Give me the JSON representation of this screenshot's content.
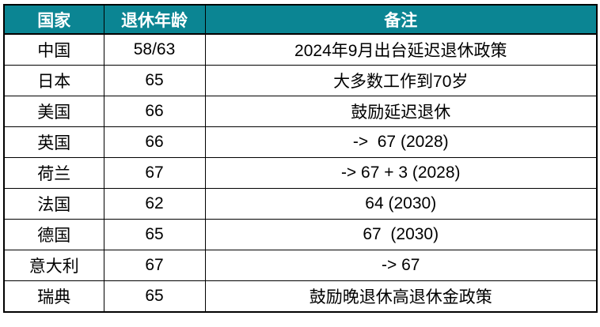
{
  "page": {
    "background": "#ffffff",
    "header_bg": "#0b8593",
    "header_text_color": "#ffffff",
    "body_text_color": "#000000",
    "border_color": "#000000"
  },
  "table": {
    "columns": [
      "国家",
      "退休年龄",
      "备注"
    ],
    "rows": [
      [
        "中国",
        "58/63",
        "2024年9月出台延迟退休政策"
      ],
      [
        "日本",
        "65",
        "大多数工作到70岁"
      ],
      [
        "美国",
        "66",
        "鼓励延迟退休"
      ],
      [
        "英国",
        "66",
        "->  67 (2028)"
      ],
      [
        "荷兰",
        "67",
        "-> 67 + 3 (2028)"
      ],
      [
        "法国",
        "62",
        "64 (2030)"
      ],
      [
        "德国",
        "65",
        "67  (2030)"
      ],
      [
        "意大利",
        "67",
        "-> 67"
      ],
      [
        "瑞典",
        "65",
        "鼓励晚退休高退休金政策"
      ]
    ]
  },
  "chart_data": {
    "type": "table",
    "title": "",
    "columns": [
      "国家",
      "退休年龄",
      "备注"
    ],
    "rows": [
      {
        "country": "中国",
        "retirement_age": "58/63",
        "note": "2024年9月出台延迟退休政策"
      },
      {
        "country": "日本",
        "retirement_age": "65",
        "note": "大多数工作到70岁"
      },
      {
        "country": "美国",
        "retirement_age": "66",
        "note": "鼓励延迟退休"
      },
      {
        "country": "英国",
        "retirement_age": "66",
        "note": "->  67 (2028)"
      },
      {
        "country": "荷兰",
        "retirement_age": "67",
        "note": "-> 67 + 3 (2028)"
      },
      {
        "country": "法国",
        "retirement_age": "62",
        "note": "64 (2030)"
      },
      {
        "country": "德国",
        "retirement_age": "65",
        "note": "67  (2030)"
      },
      {
        "country": "意大利",
        "retirement_age": "67",
        "note": "-> 67"
      },
      {
        "country": "瑞典",
        "retirement_age": "65",
        "note": "鼓励晚退休高退休金政策"
      }
    ],
    "layout": {
      "header_bg": "#0b8593",
      "header_text_color": "#ffffff",
      "grid": true,
      "align": "center"
    }
  }
}
